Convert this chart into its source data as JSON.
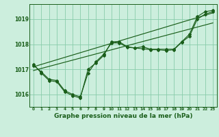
{
  "title": "Graphe pression niveau de la mer (hPa)",
  "background_color": "#cceedd",
  "grid_color": "#88ccaa",
  "line_color": "#1a5e1a",
  "xlim": [
    -0.5,
    23.5
  ],
  "ylim": [
    1015.5,
    1019.6
  ],
  "yticks": [
    1016,
    1017,
    1018,
    1019
  ],
  "xticks": [
    0,
    1,
    2,
    3,
    4,
    5,
    6,
    7,
    8,
    9,
    10,
    11,
    12,
    13,
    14,
    15,
    16,
    17,
    18,
    19,
    20,
    21,
    22,
    23
  ],
  "series1": [
    1017.2,
    1016.85,
    1016.55,
    1016.5,
    1016.1,
    1015.95,
    1015.85,
    1017.0,
    1017.25,
    1017.55,
    1018.1,
    1018.1,
    1017.9,
    1017.85,
    1017.9,
    1017.8,
    1017.8,
    1017.8,
    1017.8,
    1018.1,
    1018.4,
    1019.1,
    1019.3,
    1019.35
  ],
  "series2": [
    1017.15,
    1016.9,
    1016.6,
    1016.55,
    1016.15,
    1016.0,
    1015.9,
    1016.85,
    1017.3,
    1017.6,
    1018.05,
    1018.05,
    1017.88,
    1017.85,
    1017.82,
    1017.78,
    1017.78,
    1017.75,
    1017.78,
    1018.08,
    1018.32,
    1019.0,
    1019.2,
    1019.3
  ],
  "trend1_x": [
    0,
    23
  ],
  "trend1_y": [
    1017.1,
    1019.25
  ],
  "trend2_x": [
    0,
    23
  ],
  "trend2_y": [
    1016.95,
    1018.85
  ],
  "ylabel_fontsize": 5.5,
  "xlabel_fontsize": 6.0,
  "title_fontsize": 6.5
}
